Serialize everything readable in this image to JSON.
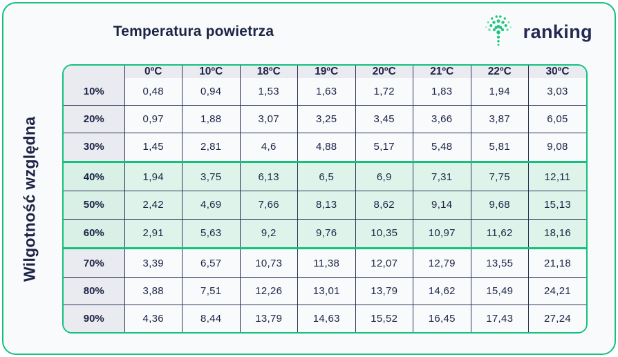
{
  "page": {
    "title": "Temperatura powietrza",
    "y_axis_label": "Wilgotność względna"
  },
  "logo": {
    "text": "ranking",
    "icon": "dotted-fan-icon",
    "icon_color": "#1fc77d",
    "text_color": "#232a52"
  },
  "colors": {
    "accent_green": "#13c17c",
    "navy_text": "#1d2345",
    "grid_line": "#2a3053",
    "mint_band_bg": "#def4ea",
    "header_gray_bg": "#e9ebf1",
    "card_bg": "#f8fafc"
  },
  "chart_data": {
    "type": "table",
    "title": "Temperatura powietrza",
    "ylabel": "Wilgotność względna",
    "corner_cell": "",
    "columns": [
      "0ºC",
      "10ºC",
      "18ºC",
      "19ºC",
      "20ºC",
      "21ºC",
      "22ºC",
      "30ºC"
    ],
    "rows": [
      {
        "label": "10%",
        "highlighted": false,
        "values": [
          "0,48",
          "0,94",
          "1,53",
          "1,63",
          "1,72",
          "1,83",
          "1,94",
          "3,03"
        ]
      },
      {
        "label": "20%",
        "highlighted": false,
        "values": [
          "0,97",
          "1,88",
          "3,07",
          "3,25",
          "3,45",
          "3,66",
          "3,87",
          "6,05"
        ]
      },
      {
        "label": "30%",
        "highlighted": false,
        "values": [
          "1,45",
          "2,81",
          "4,6",
          "4,88",
          "5,17",
          "5,48",
          "5,81",
          "9,08"
        ]
      },
      {
        "label": "40%",
        "highlighted": true,
        "values": [
          "1,94",
          "3,75",
          "6,13",
          "6,5",
          "6,9",
          "7,31",
          "7,75",
          "12,11"
        ]
      },
      {
        "label": "50%",
        "highlighted": true,
        "values": [
          "2,42",
          "4,69",
          "7,66",
          "8,13",
          "8,62",
          "9,14",
          "9,68",
          "15,13"
        ]
      },
      {
        "label": "60%",
        "highlighted": true,
        "values": [
          "2,91",
          "5,63",
          "9,2",
          "9,76",
          "10,35",
          "10,97",
          "11,62",
          "18,16"
        ]
      },
      {
        "label": "70%",
        "highlighted": false,
        "values": [
          "3,39",
          "6,57",
          "10,73",
          "11,38",
          "12,07",
          "12,79",
          "13,55",
          "21,18"
        ]
      },
      {
        "label": "80%",
        "highlighted": false,
        "values": [
          "3,88",
          "7,51",
          "12,26",
          "13,01",
          "13,79",
          "14,62",
          "15,49",
          "24,21"
        ]
      },
      {
        "label": "90%",
        "highlighted": false,
        "values": [
          "4,36",
          "8,44",
          "13,79",
          "14,63",
          "15,52",
          "16,45",
          "17,43",
          "27,24"
        ]
      }
    ]
  }
}
